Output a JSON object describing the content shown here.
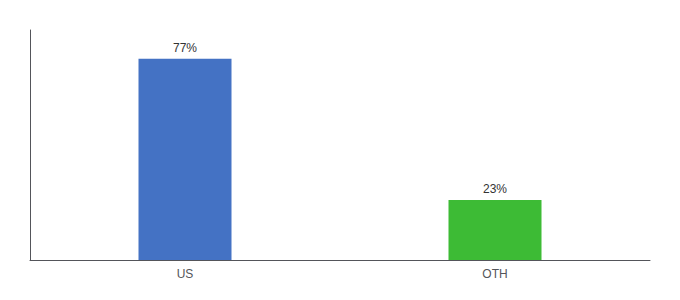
{
  "chart_data": {
    "type": "bar",
    "categories": [
      "US",
      "OTH"
    ],
    "values": [
      77,
      23
    ],
    "value_labels": [
      "77%",
      "23%"
    ],
    "colors": [
      "#4472c4",
      "#3dbb35"
    ],
    "ylim": [
      0,
      88
    ],
    "tick_labels": "x",
    "data_labels": true,
    "grid": false
  }
}
